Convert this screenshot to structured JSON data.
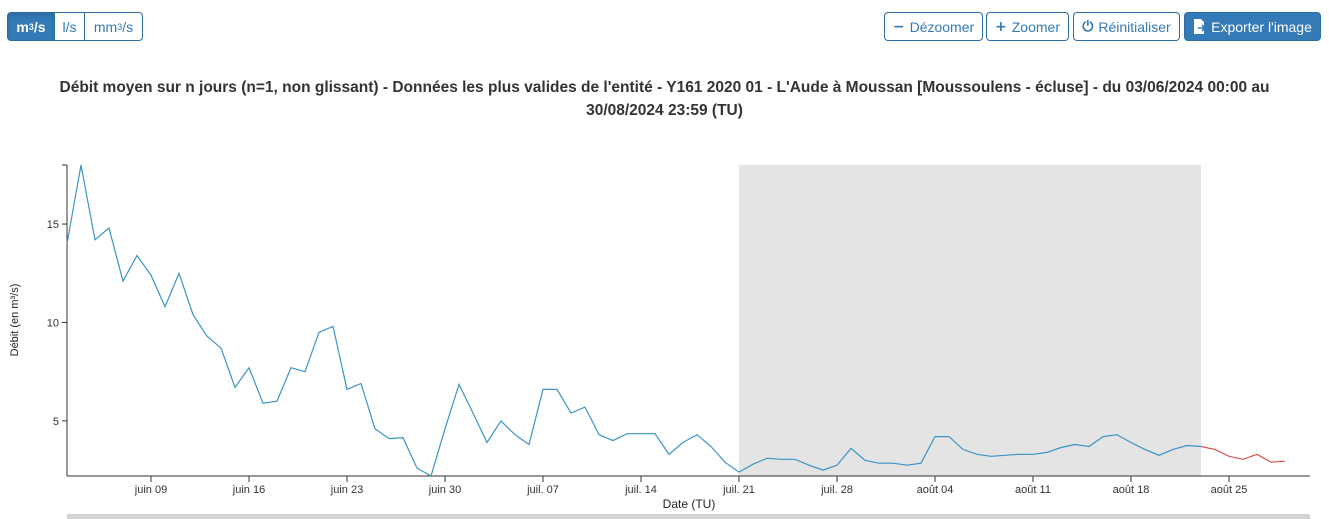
{
  "units": {
    "active": "m3",
    "items": [
      {
        "id": "m3",
        "base": "m",
        "sup": "3",
        "tail": "/s"
      },
      {
        "id": "ls",
        "base": "l/s",
        "sup": "",
        "tail": ""
      },
      {
        "id": "mm3",
        "base": "mm",
        "sup": "3",
        "tail": "/s"
      }
    ]
  },
  "toolbar": {
    "dezoom_label": "Dézoomer",
    "zoom_label": "Zoomer",
    "reset_label": "Réinitialiser",
    "export_label": "Exporter l'image"
  },
  "chart_data": {
    "type": "line",
    "title": "Débit moyen sur n jours (n=1, non glissant) - Données les plus valides de l'entité - Y161 2020 01 - L'Aude à Moussan [Moussoulens - écluse] - du 03/06/2024 00:00 au 30/08/2024 23:59 (TU)",
    "xlabel": "Date (TU)",
    "ylabel": "Débit (en m³/s)",
    "x_range": [
      "2024-06-03",
      "2024-08-28"
    ],
    "ylim": [
      2.2,
      18.0
    ],
    "y_ticks": [
      5,
      10,
      15
    ],
    "x_ticks": [
      {
        "date": "2024-06-09",
        "label": "juin 09"
      },
      {
        "date": "2024-06-16",
        "label": "juin 16"
      },
      {
        "date": "2024-06-23",
        "label": "juin 23"
      },
      {
        "date": "2024-06-30",
        "label": "juin 30"
      },
      {
        "date": "2024-07-07",
        "label": "juil. 07"
      },
      {
        "date": "2024-07-14",
        "label": "juil. 14"
      },
      {
        "date": "2024-07-21",
        "label": "juil. 21"
      },
      {
        "date": "2024-07-28",
        "label": "juil. 28"
      },
      {
        "date": "2024-08-04",
        "label": "août 04"
      },
      {
        "date": "2024-08-11",
        "label": "août 11"
      },
      {
        "date": "2024-08-18",
        "label": "août 18"
      },
      {
        "date": "2024-08-25",
        "label": "août 25"
      }
    ],
    "highlight_band": {
      "start": "2024-07-21",
      "end": "2024-08-23",
      "color": "#e4e4e4"
    },
    "grid": false,
    "series": [
      {
        "id": "validated",
        "color": "#3b94c4",
        "points": [
          [
            "2024-06-03",
            14.0
          ],
          [
            "2024-06-04",
            18.0
          ],
          [
            "2024-06-05",
            14.2
          ],
          [
            "2024-06-06",
            14.8
          ],
          [
            "2024-06-07",
            12.1
          ],
          [
            "2024-06-08",
            13.4
          ],
          [
            "2024-06-09",
            12.4
          ],
          [
            "2024-06-10",
            10.8
          ],
          [
            "2024-06-11",
            12.5
          ],
          [
            "2024-06-12",
            10.4
          ],
          [
            "2024-06-13",
            9.3
          ],
          [
            "2024-06-14",
            8.7
          ],
          [
            "2024-06-15",
            6.7
          ],
          [
            "2024-06-16",
            7.7
          ],
          [
            "2024-06-17",
            5.9
          ],
          [
            "2024-06-18",
            6.0
          ],
          [
            "2024-06-19",
            7.7
          ],
          [
            "2024-06-20",
            7.5
          ],
          [
            "2024-06-21",
            9.5
          ],
          [
            "2024-06-22",
            9.8
          ],
          [
            "2024-06-23",
            6.6
          ],
          [
            "2024-06-24",
            6.9
          ],
          [
            "2024-06-25",
            4.6
          ],
          [
            "2024-06-26",
            4.1
          ],
          [
            "2024-06-27",
            4.15
          ],
          [
            "2024-06-28",
            2.6
          ],
          [
            "2024-06-29",
            2.2
          ],
          [
            "2024-06-30",
            4.6
          ],
          [
            "2024-07-01",
            6.85
          ],
          [
            "2024-07-02",
            5.4
          ],
          [
            "2024-07-03",
            3.9
          ],
          [
            "2024-07-04",
            5.0
          ],
          [
            "2024-07-05",
            4.3
          ],
          [
            "2024-07-06",
            3.8
          ],
          [
            "2024-07-07",
            6.6
          ],
          [
            "2024-07-08",
            6.6
          ],
          [
            "2024-07-09",
            5.4
          ],
          [
            "2024-07-10",
            5.7
          ],
          [
            "2024-07-11",
            4.3
          ],
          [
            "2024-07-12",
            4.0
          ],
          [
            "2024-07-13",
            4.35
          ],
          [
            "2024-07-14",
            4.35
          ],
          [
            "2024-07-15",
            4.35
          ],
          [
            "2024-07-16",
            3.3
          ],
          [
            "2024-07-17",
            3.9
          ],
          [
            "2024-07-18",
            4.3
          ],
          [
            "2024-07-19",
            3.7
          ],
          [
            "2024-07-20",
            2.9
          ],
          [
            "2024-07-21",
            2.4
          ],
          [
            "2024-07-22",
            2.8
          ],
          [
            "2024-07-23",
            3.1
          ],
          [
            "2024-07-24",
            3.05
          ],
          [
            "2024-07-25",
            3.05
          ],
          [
            "2024-07-26",
            2.75
          ],
          [
            "2024-07-27",
            2.5
          ],
          [
            "2024-07-28",
            2.75
          ],
          [
            "2024-07-29",
            3.6
          ],
          [
            "2024-07-30",
            3.0
          ],
          [
            "2024-07-31",
            2.85
          ],
          [
            "2024-08-01",
            2.85
          ],
          [
            "2024-08-02",
            2.75
          ],
          [
            "2024-08-03",
            2.85
          ],
          [
            "2024-08-04",
            4.2
          ],
          [
            "2024-08-05",
            4.2
          ],
          [
            "2024-08-06",
            3.55
          ],
          [
            "2024-08-07",
            3.3
          ],
          [
            "2024-08-08",
            3.2
          ],
          [
            "2024-08-09",
            3.25
          ],
          [
            "2024-08-10",
            3.3
          ],
          [
            "2024-08-11",
            3.3
          ],
          [
            "2024-08-12",
            3.4
          ],
          [
            "2024-08-13",
            3.65
          ],
          [
            "2024-08-14",
            3.8
          ],
          [
            "2024-08-15",
            3.7
          ],
          [
            "2024-08-16",
            4.2
          ],
          [
            "2024-08-17",
            4.3
          ],
          [
            "2024-08-18",
            3.9
          ],
          [
            "2024-08-19",
            3.55
          ],
          [
            "2024-08-20",
            3.25
          ],
          [
            "2024-08-21",
            3.55
          ],
          [
            "2024-08-22",
            3.75
          ],
          [
            "2024-08-23",
            3.7
          ]
        ]
      },
      {
        "id": "recent",
        "color": "#d9534f",
        "points": [
          [
            "2024-08-23",
            3.7
          ],
          [
            "2024-08-24",
            3.55
          ],
          [
            "2024-08-25",
            3.2
          ],
          [
            "2024-08-26",
            3.05
          ],
          [
            "2024-08-27",
            3.3
          ],
          [
            "2024-08-28",
            2.9
          ],
          [
            "2024-08-29",
            2.95
          ]
        ]
      }
    ]
  }
}
